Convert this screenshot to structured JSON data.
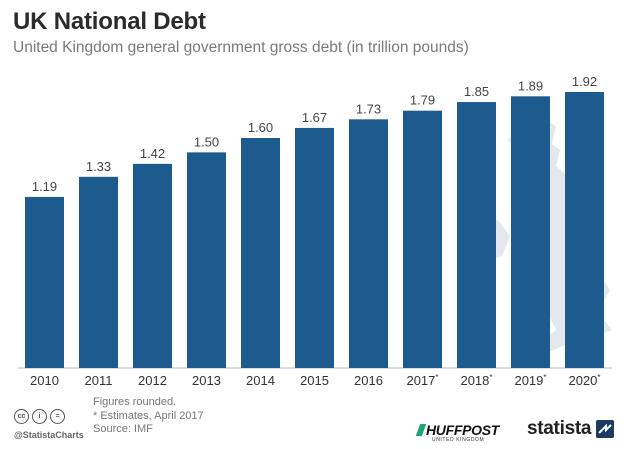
{
  "header": {
    "title": "UK National Debt",
    "subtitle": "United Kingdom general government gross debt (in trillion pounds)"
  },
  "chart_data": {
    "type": "bar",
    "title": "UK National Debt",
    "subtitle": "United Kingdom general government gross debt (in trillion pounds)",
    "categories": [
      "2010",
      "2011",
      "2012",
      "2013",
      "2014",
      "2015",
      "2016",
      "2017*",
      "2018*",
      "2019*",
      "2020*"
    ],
    "values": [
      1.19,
      1.33,
      1.42,
      1.5,
      1.6,
      1.67,
      1.73,
      1.79,
      1.85,
      1.89,
      1.92
    ],
    "value_labels": [
      "1.19",
      "1.33",
      "1.42",
      "1.50",
      "1.60",
      "1.67",
      "1.73",
      "1.79",
      "1.85",
      "1.89",
      "1.92"
    ],
    "ylim": [
      0,
      1.92
    ],
    "grid": false,
    "legend": "none",
    "bar_color": "#1d5a8e",
    "background_map_color": "#e3e8ee"
  },
  "footer": {
    "note1": "Figures rounded.",
    "note2": "* Estimates, April 2017",
    "source": "Source: IMF",
    "handle": "@StatistaCharts",
    "partner": "HUFFPOST",
    "partner_sub": "UNITED KINGDOM",
    "brand": "statista"
  }
}
